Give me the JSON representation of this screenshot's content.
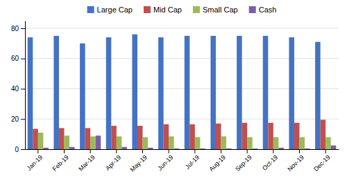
{
  "chart_data": {
    "type": "bar",
    "categories": [
      "Jan-19",
      "Feb-19",
      "Mar-19",
      "Apr-19",
      "May-19",
      "Jun-19",
      "Jul-19",
      "Aug-19",
      "Sep-19",
      "Oct-19",
      "Nov-19",
      "Dec-19"
    ],
    "series": [
      {
        "name": "Large Cap",
        "color": "#4472C4",
        "values": [
          74,
          75,
          70,
          74,
          76,
          74,
          75,
          75,
          75,
          75,
          74,
          71
        ]
      },
      {
        "name": "Mid Cap",
        "color": "#C0504D",
        "values": [
          13.5,
          14,
          14,
          15.5,
          15.5,
          16.5,
          16.5,
          17,
          17.5,
          17.5,
          17.5,
          19.5
        ]
      },
      {
        "name": "Small Cap",
        "color": "#9BBB59",
        "values": [
          11,
          9,
          8.5,
          8.5,
          8,
          8.5,
          8,
          8.5,
          8,
          8,
          8,
          8
        ]
      },
      {
        "name": "Cash",
        "color": "#7B5EA7",
        "values": [
          1,
          1.5,
          9,
          1.5,
          1,
          0.5,
          0.5,
          0.5,
          0.5,
          1,
          0.5,
          2.5
        ]
      }
    ],
    "ylim": [
      0,
      85
    ],
    "yticks": [
      0,
      20,
      40,
      60,
      80
    ],
    "grid": true,
    "legend": "top"
  }
}
